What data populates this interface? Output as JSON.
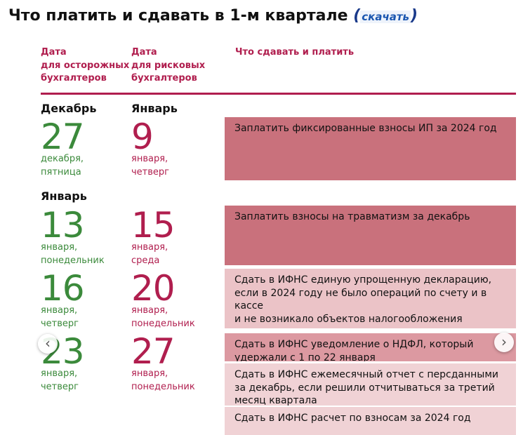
{
  "header": {
    "title": "Что платить и сдавать в 1-м квартале",
    "link": "скачать"
  },
  "columns": [
    [
      "Дата",
      "для осторожных",
      "бухгалтеров"
    ],
    [
      "Дата",
      "для рисковых",
      "бухгалтеров"
    ],
    [
      "Что сдавать и платить"
    ]
  ],
  "rows": [
    {
      "months": [
        "Декабрь",
        "Январь"
      ],
      "careful": {
        "day": 27,
        "lines": [
          "декабря,",
          "пятница"
        ]
      },
      "risky": {
        "day": 9,
        "lines": [
          "января,",
          "четверг"
        ]
      }
    },
    {
      "months": [
        "Январь"
      ],
      "careful": {
        "day": 13,
        "lines": [
          "января,",
          "понедельник"
        ]
      },
      "risky": {
        "day": 15,
        "lines": [
          "января,",
          "среда"
        ]
      }
    },
    {
      "months": [],
      "careful": {
        "day": 16,
        "lines": [
          "января,",
          "четверг"
        ]
      },
      "risky": {
        "day": 20,
        "lines": [
          "января,",
          "понедельник"
        ]
      }
    },
    {
      "months": [],
      "careful": {
        "day": 23,
        "lines": [
          "января,",
          "четверг"
        ]
      },
      "risky": {
        "day": 27,
        "lines": [
          "января,",
          "понедельник"
        ]
      }
    }
  ],
  "tasks": [
    {
      "lines": [
        "Заплатить фиксированные взносы ИП за 2024 год"
      ],
      "color": "#c9717c"
    },
    {
      "lines": [
        "Заплатить взносы на травматизм за декабрь"
      ],
      "color": "#c9717c"
    },
    {
      "lines": [
        "Сдать в ИФНС единую упрощенную декларацию,",
        "если в 2024 году не было операций по счету и в кассе",
        "и не возникало объектов налогообложения"
      ],
      "color": "#ebc3c7"
    },
    {
      "lines": [
        "Сдать в ИФНС уведомление о НДФЛ, который",
        "удержали с 1 по 22 января"
      ],
      "color": "#dc99a1"
    },
    {
      "lines": [
        "Сдать в ИФНС ежемесячный отчет с персданными",
        "за декабрь, если решили отчитываться за третий",
        "месяц квартала"
      ],
      "color": "#f0d2d5"
    },
    {
      "lines": [
        "Сдать в ИФНС расчет по взносам за 2024 год"
      ],
      "color": "#f0d2d5"
    }
  ]
}
